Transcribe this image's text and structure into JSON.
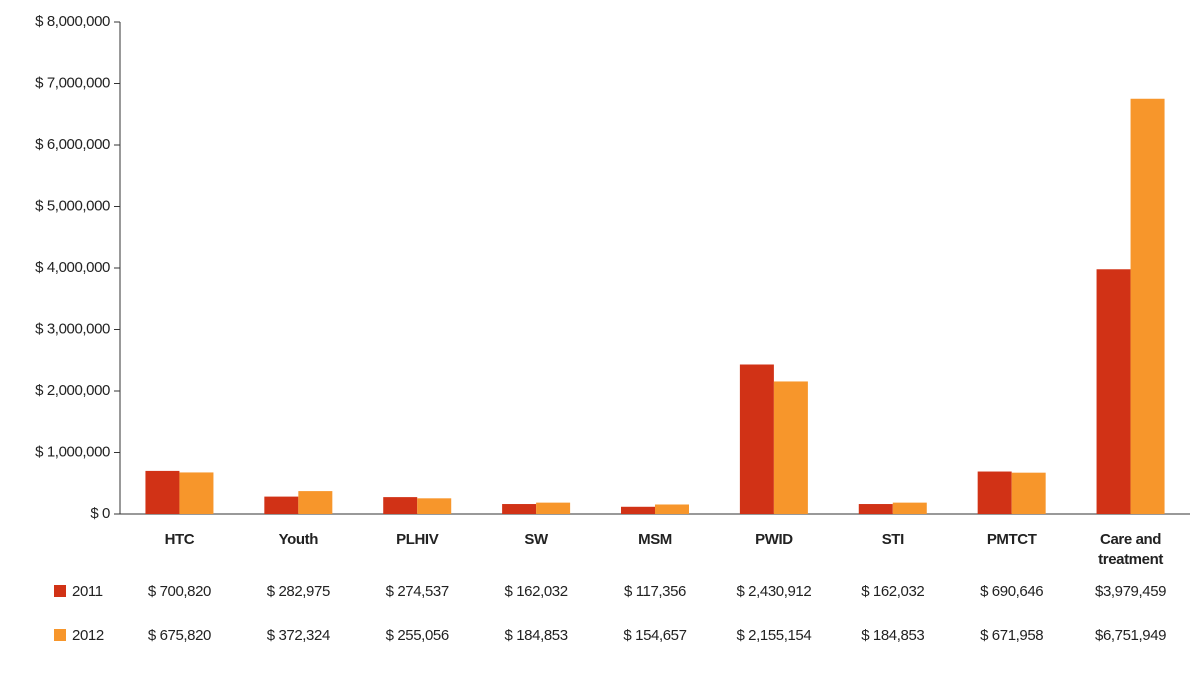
{
  "chart_data": {
    "type": "bar",
    "categories": [
      "HTC",
      "Youth",
      "PLHIV",
      "SW",
      "MSM",
      "PWID",
      "STI",
      "PMTCT",
      "Care and treatment"
    ],
    "series": [
      {
        "name": "2011",
        "color": "#d13216",
        "values": [
          700820,
          282975,
          274537,
          162032,
          117356,
          2430912,
          162032,
          690646,
          3979459
        ],
        "value_labels": [
          "$ 700,820",
          "$ 282,975",
          "$ 274,537",
          "$ 162,032",
          "$ 117,356",
          "$ 2,430,912",
          "$ 162,032",
          "$ 690,646",
          "$3,979,459"
        ]
      },
      {
        "name": "2012",
        "color": "#f7962b",
        "values": [
          675820,
          372324,
          255056,
          184853,
          154657,
          2155154,
          184853,
          671958,
          6751949
        ],
        "value_labels": [
          "$ 675,820",
          "$ 372,324",
          "$ 255,056",
          "$ 184,853",
          "$ 154,657",
          "$ 2,155,154",
          "$ 184,853",
          "$ 671,958",
          "$6,751,949"
        ]
      }
    ],
    "ylim": [
      0,
      8000000
    ],
    "yticks": [
      {
        "value": 0,
        "label": "$ 0"
      },
      {
        "value": 1000000,
        "label": "$ 1,000,000"
      },
      {
        "value": 2000000,
        "label": "$ 2,000,000"
      },
      {
        "value": 3000000,
        "label": "$ 3,000,000"
      },
      {
        "value": 4000000,
        "label": "$ 4,000,000"
      },
      {
        "value": 5000000,
        "label": "$ 5,000,000"
      },
      {
        "value": 6000000,
        "label": "$ 6,000,000"
      },
      {
        "value": 7000000,
        "label": "$ 7,000,000"
      },
      {
        "value": 8000000,
        "label": "$ 8,000,000"
      }
    ],
    "grid": false
  }
}
